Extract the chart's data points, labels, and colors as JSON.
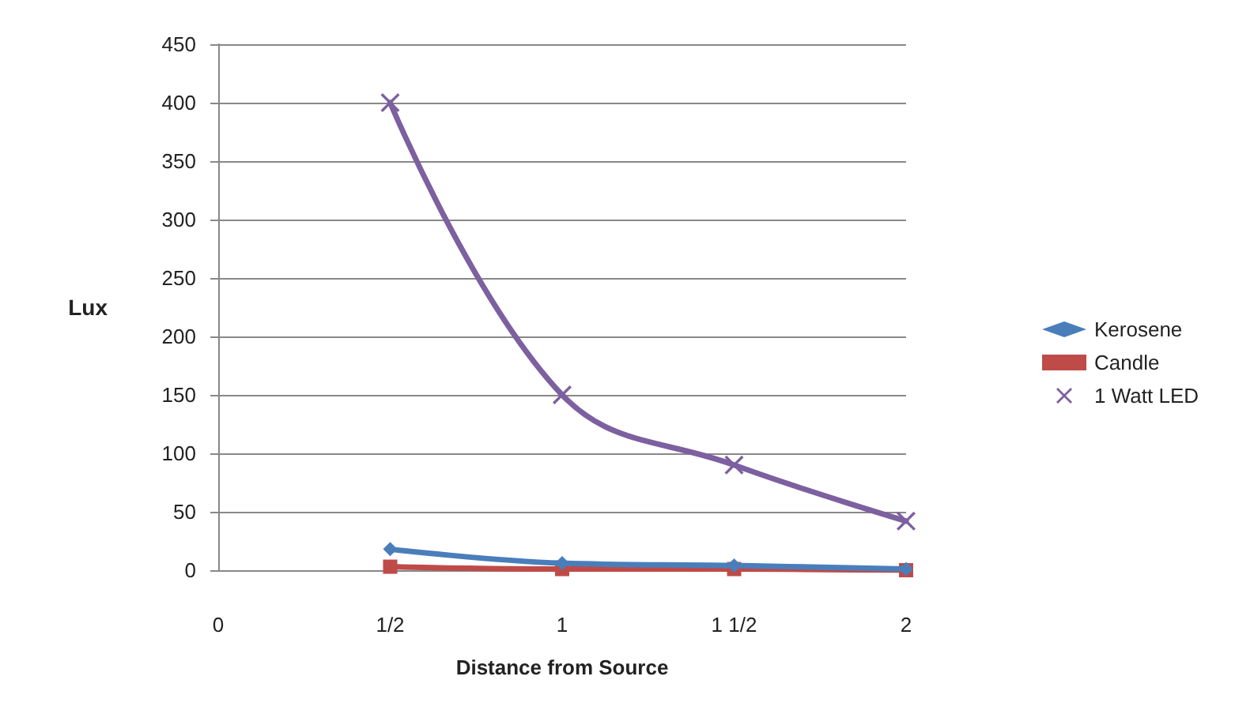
{
  "chart_data": {
    "type": "line",
    "xlabel": "Distance from Source",
    "ylabel": "Lux",
    "categories": [
      "0",
      "1/2",
      "1",
      "1 1/2",
      "2"
    ],
    "series": [
      {
        "name": "Kerosene",
        "color": "#4a7ebb",
        "marker": "diamond",
        "values": [
          null,
          18,
          6,
          4,
          1
        ]
      },
      {
        "name": "Candle",
        "color": "#be4b48",
        "marker": "square",
        "values": [
          null,
          3,
          1,
          1,
          0
        ]
      },
      {
        "name": "1 Watt LED",
        "color": "#7d60a0",
        "marker": "cross",
        "values": [
          null,
          400,
          150,
          90,
          42
        ]
      }
    ],
    "ylim": [
      0,
      450
    ],
    "yticks": [
      0,
      50,
      100,
      150,
      200,
      250,
      300,
      350,
      400,
      450
    ],
    "grid": "y",
    "legend": "right"
  }
}
